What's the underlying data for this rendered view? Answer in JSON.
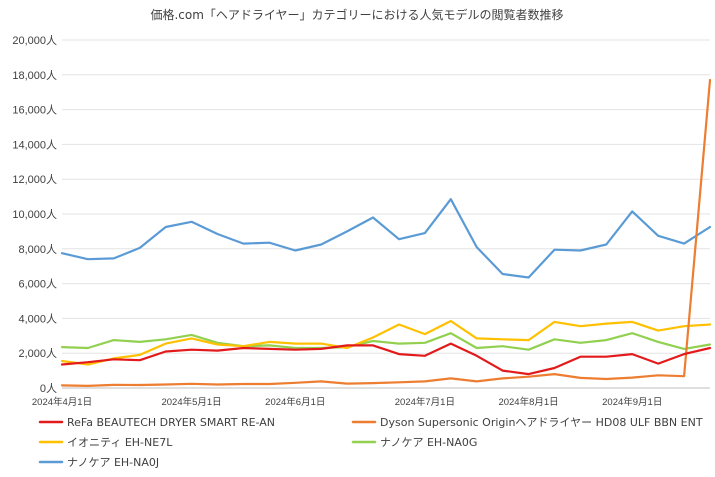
{
  "chart_data": {
    "type": "line",
    "title": "価格.com「ヘアドライヤー」カテゴリーにおける人気モデルの閲覧者数推移",
    "xlabel": "",
    "ylabel": "",
    "ylim": [
      0,
      20000
    ],
    "y_ticks": [
      0,
      2000,
      4000,
      6000,
      8000,
      10000,
      12000,
      14000,
      16000,
      18000,
      20000
    ],
    "y_tick_labels": [
      "0人",
      "2,000人",
      "4,000人",
      "6,000人",
      "8,000人",
      "10,000人",
      "12,000人",
      "14,000人",
      "16,000人",
      "18,000人",
      "20,000人"
    ],
    "x_tick_labels": [
      {
        "label": "2024年4月1日",
        "index": 0
      },
      {
        "label": "2024年5月1日",
        "index": 5
      },
      {
        "label": "2024年6月1日",
        "index": 9
      },
      {
        "label": "2024年7月1日",
        "index": 14
      },
      {
        "label": "2024年8月1日",
        "index": 18
      },
      {
        "label": "2024年9月1日",
        "index": 22
      }
    ],
    "num_points": 26,
    "grid": true,
    "legend_position": "bottom",
    "series": [
      {
        "name": "ReFa BEAUTECH DRYER SMART RE-AN",
        "color": "#e31a1c",
        "values": [
          1350,
          1480,
          1650,
          1600,
          2100,
          2200,
          2150,
          2300,
          2250,
          2200,
          2250,
          2450,
          2450,
          1950,
          1850,
          2550,
          1850,
          1000,
          800,
          1150,
          1800,
          1800,
          1950,
          1400,
          1950,
          2300
        ]
      },
      {
        "name": "Dyson Supersonic Originヘアドライヤー HD08 ULF BBN ENT",
        "color": "#ed7d31",
        "values": [
          150,
          120,
          180,
          170,
          200,
          240,
          200,
          230,
          230,
          300,
          380,
          250,
          280,
          330,
          380,
          550,
          380,
          550,
          650,
          800,
          580,
          520,
          600,
          730,
          680,
          17700
        ]
      },
      {
        "name": "イオニティ EH-NE7L",
        "color": "#ffc000",
        "values": [
          1550,
          1350,
          1700,
          1900,
          2550,
          2850,
          2500,
          2400,
          2650,
          2550,
          2550,
          2300,
          2900,
          3650,
          3100,
          3850,
          2850,
          2800,
          2750,
          3800,
          3550,
          3700,
          3800,
          3300,
          3550,
          3650
        ]
      },
      {
        "name": "ナノケア EH-NA0G",
        "color": "#92d050",
        "values": [
          2350,
          2300,
          2750,
          2650,
          2800,
          3050,
          2600,
          2400,
          2450,
          2300,
          2300,
          2350,
          2700,
          2550,
          2600,
          3150,
          2300,
          2400,
          2200,
          2800,
          2600,
          2750,
          3150,
          2650,
          2250,
          2500
        ]
      },
      {
        "name": "ナノケア EH-NA0J",
        "color": "#5b9bd5",
        "values": [
          7750,
          7400,
          7450,
          8050,
          9250,
          9550,
          8850,
          8300,
          8350,
          7900,
          8250,
          9000,
          9800,
          8550,
          8900,
          10850,
          8100,
          6550,
          6350,
          7950,
          7900,
          8250,
          10150,
          8750,
          8300,
          9250
        ]
      }
    ]
  }
}
